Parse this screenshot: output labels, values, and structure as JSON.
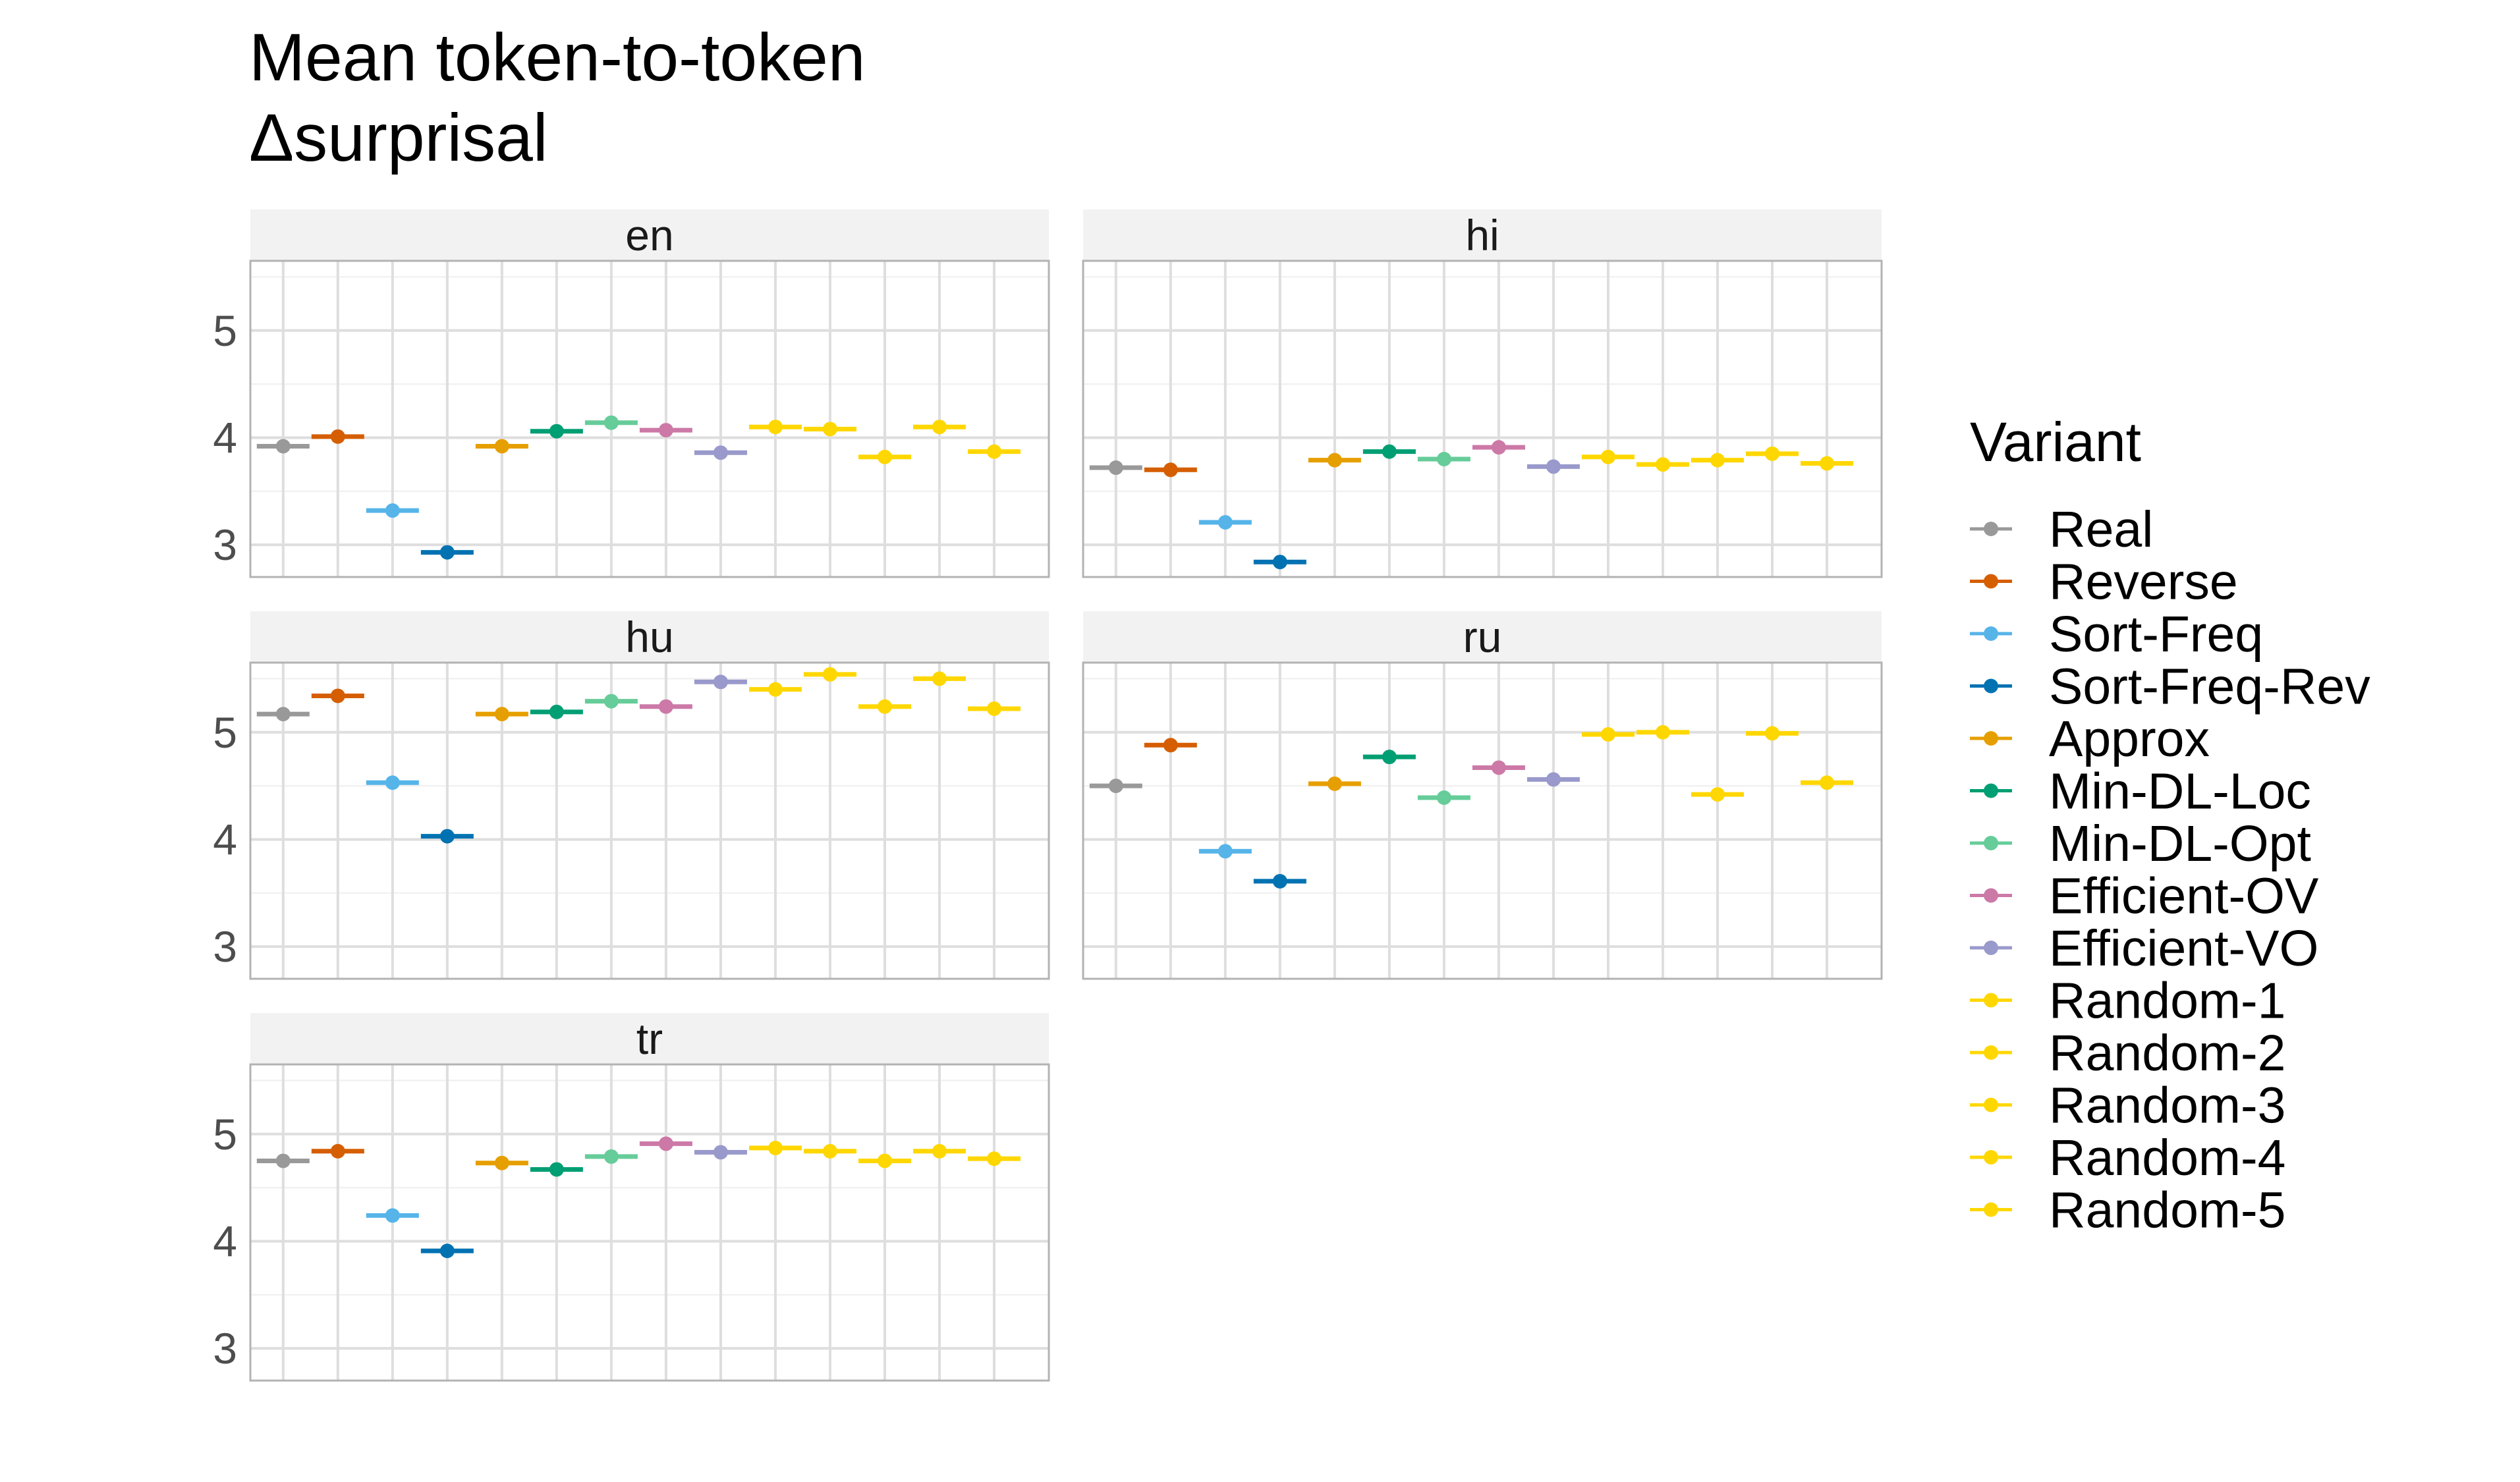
{
  "chart_data": {
    "type": "scatter",
    "title_lines": [
      "Mean token-to-token",
      "Δsurprisal"
    ],
    "xlabel": "",
    "ylabel": "",
    "ylim": [
      2.7,
      5.65
    ],
    "yticks": [
      3,
      4,
      5
    ],
    "grid": true,
    "legend_title": "Variant",
    "legend_position": "right",
    "variants": [
      {
        "name": "Real",
        "color": "#999999"
      },
      {
        "name": "Reverse",
        "color": "#D55E00"
      },
      {
        "name": "Sort-Freq",
        "color": "#56B4E9"
      },
      {
        "name": "Sort-Freq-Rev",
        "color": "#0072B2"
      },
      {
        "name": "Approx",
        "color": "#E69F00"
      },
      {
        "name": "Min-DL-Loc",
        "color": "#009E73"
      },
      {
        "name": "Min-DL-Opt",
        "color": "#66CC99"
      },
      {
        "name": "Efficient-OV",
        "color": "#CC79A7"
      },
      {
        "name": "Efficient-VO",
        "color": "#9999CC"
      },
      {
        "name": "Random-1",
        "color": "#FFD700"
      },
      {
        "name": "Random-2",
        "color": "#FFD700"
      },
      {
        "name": "Random-3",
        "color": "#FFD700"
      },
      {
        "name": "Random-4",
        "color": "#FFD700"
      },
      {
        "name": "Random-5",
        "color": "#FFD700"
      }
    ],
    "panels": [
      {
        "label": "en",
        "values": [
          3.92,
          4.01,
          3.32,
          2.93,
          3.92,
          4.06,
          4.14,
          4.07,
          3.86,
          4.1,
          4.08,
          3.82,
          4.1,
          3.87
        ]
      },
      {
        "label": "hi",
        "values": [
          3.72,
          3.7,
          3.21,
          2.84,
          3.79,
          3.87,
          3.8,
          3.91,
          3.73,
          3.82,
          3.75,
          3.79,
          3.85,
          3.76
        ]
      },
      {
        "label": "hu",
        "values": [
          5.17,
          5.34,
          4.53,
          4.03,
          5.17,
          5.19,
          5.29,
          5.24,
          5.47,
          5.4,
          5.54,
          5.24,
          5.5,
          5.22
        ]
      },
      {
        "label": "ru",
        "values": [
          4.5,
          4.88,
          3.89,
          3.61,
          4.52,
          4.77,
          4.39,
          4.67,
          4.56,
          4.98,
          5.0,
          4.42,
          4.99,
          4.53
        ]
      },
      {
        "label": "tr",
        "values": [
          4.75,
          4.84,
          4.24,
          3.91,
          4.73,
          4.67,
          4.79,
          4.91,
          4.83,
          4.87,
          4.84,
          4.75,
          4.84,
          4.77
        ]
      }
    ]
  }
}
